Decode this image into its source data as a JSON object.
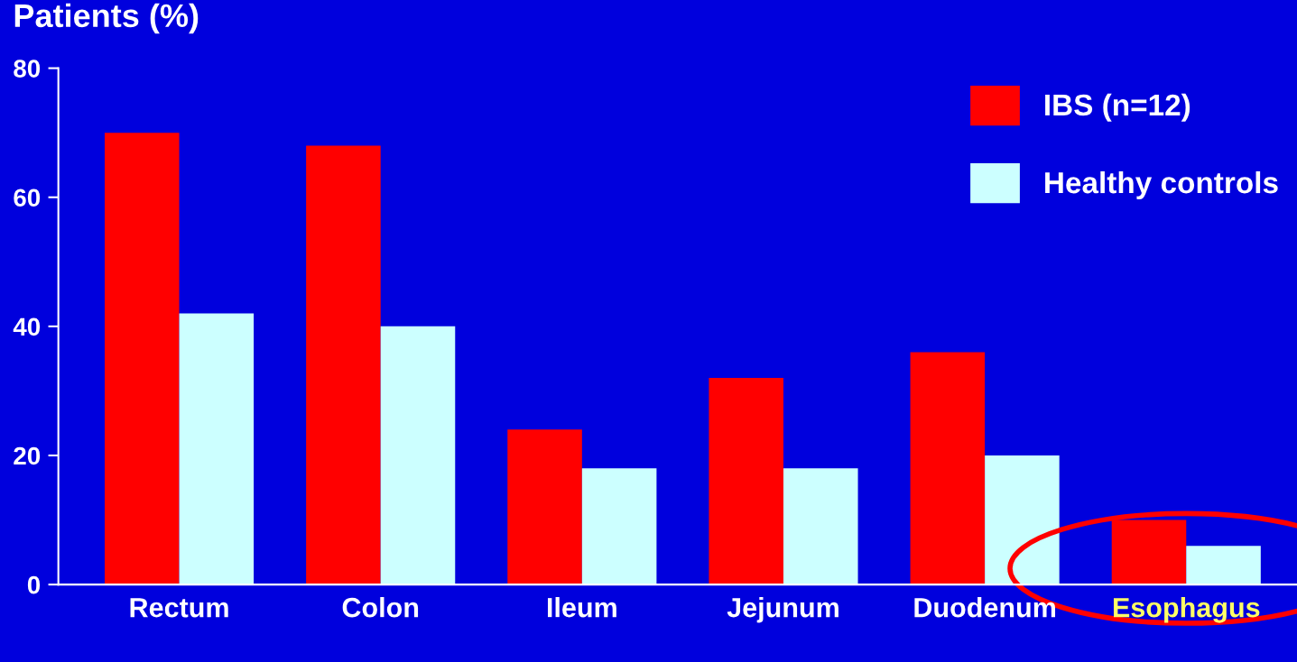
{
  "chart_data": {
    "type": "bar",
    "ylabel": "Patients (%)",
    "categories": [
      "Rectum",
      "Colon",
      "Ileum",
      "Jejunum",
      "Duodenum",
      "Esophagus"
    ],
    "series": [
      {
        "name": "IBS (n=12)",
        "color": "#ff0000",
        "values": [
          70,
          68,
          24,
          32,
          36,
          10
        ]
      },
      {
        "name": "Healthy controls",
        "color": "#ccffff",
        "values": [
          42,
          40,
          18,
          18,
          20,
          6
        ]
      }
    ],
    "ylim": [
      0,
      80
    ],
    "yticks": [
      0,
      20,
      40,
      60,
      80
    ],
    "grid": false,
    "legend": "top right"
  }
}
